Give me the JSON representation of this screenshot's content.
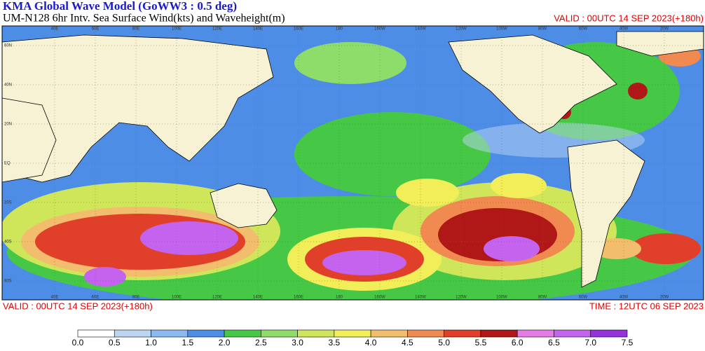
{
  "header": {
    "title": "KMA  Global Wave Model (GoWW3 : 0.5 deg)",
    "subtitle": "UM-N128  6hr Intv. Sea Surface Wind(kts) and Waveheight(m)",
    "valid_top": "VALID : 00UTC 14 SEP 2023(+180h)"
  },
  "footer": {
    "valid": "VALID : 00UTC 14 SEP 2023(+180h)",
    "time": "TIME : 12UTC 06 SEP 2023"
  },
  "map": {
    "lon_labels": [
      "40E",
      "60E",
      "80E",
      "100E",
      "120E",
      "140E",
      "160E",
      "180",
      "160W",
      "140W",
      "120W",
      "100W",
      "80W",
      "60W",
      "40W",
      "20W"
    ],
    "lat_labels": [
      "60N",
      "40N",
      "20N",
      "EQ",
      "20S",
      "40S",
      "60S"
    ]
  },
  "colorbar": {
    "labels": [
      "0.0",
      "0.5",
      "1.0",
      "1.5",
      "2.0",
      "2.5",
      "3.0",
      "3.5",
      "4.0",
      "4.5",
      "5.0",
      "5.5",
      "6.0",
      "6.5",
      "7.0",
      "7.5"
    ],
    "colors": [
      "#ffffff",
      "#bcd6f2",
      "#8ab9f0",
      "#4e8de6",
      "#46c846",
      "#8edc6a",
      "#cfe65a",
      "#f2ee5a",
      "#f2be6e",
      "#f08a50",
      "#e0402a",
      "#b01818",
      "#e67ae6",
      "#c464ee",
      "#9632dc"
    ]
  }
}
